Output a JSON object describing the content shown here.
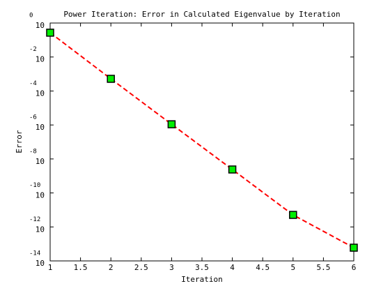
{
  "chart_data": {
    "type": "line",
    "title": "Power Iteration: Error in Calculated Eigenvalue by Iteration",
    "x_label": "Iteration",
    "y_label": "Error",
    "x": [
      1,
      2,
      3,
      4,
      5,
      6
    ],
    "values": [
      0.27,
      0.00052,
      1.1e-06,
      2.4e-09,
      5.1e-12,
      6e-14
    ],
    "color": "#ff0000",
    "line_style": "dashed",
    "marker": "square",
    "marker_color": "#00ee00",
    "yscale": "log",
    "xlim": [
      1,
      6
    ],
    "xticks": [
      1,
      1.5,
      2,
      2.5,
      3,
      3.5,
      4,
      4.5,
      5,
      5.5,
      6
    ],
    "ylim": [
      1e-14,
      1
    ],
    "yticks": [
      {
        "value": 1,
        "label": "10",
        "exponent": "0"
      },
      {
        "value": 0.01,
        "label": "10",
        "exponent": "-2"
      },
      {
        "value": 0.0001,
        "label": "10",
        "exponent": "-4"
      },
      {
        "value": 1e-06,
        "label": "10",
        "exponent": "-6"
      },
      {
        "value": 1e-08,
        "label": "10",
        "exponent": "-8"
      },
      {
        "value": 1e-10,
        "label": "10",
        "exponent": "-10"
      },
      {
        "value": 1e-12,
        "label": "10",
        "exponent": "-12"
      },
      {
        "value": 1e-14,
        "label": "10",
        "exponent": "-14"
      }
    ],
    "grid": false
  }
}
